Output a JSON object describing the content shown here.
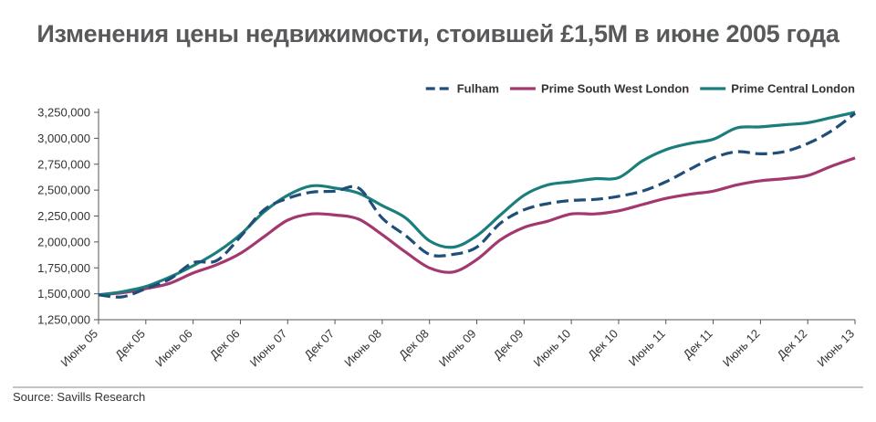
{
  "chart_data": {
    "type": "line",
    "title": "Изменения цены недвижимости, стоившей £1,5М в июне 2005 года",
    "xlabel": "",
    "ylabel": "",
    "ylim": [
      1250000,
      3250000
    ],
    "yticks": [
      1250000,
      1500000,
      1750000,
      2000000,
      2250000,
      2500000,
      2750000,
      3000000,
      3250000
    ],
    "ytick_labels": [
      "1,250,000",
      "1,500,000",
      "1,750,000",
      "2,000,000",
      "2,250,000",
      "2,500,000",
      "2,750,000",
      "3,000,000",
      "3,250,000"
    ],
    "x_tick_labels": [
      "Июнь 05",
      "Дек 05",
      "Июнь 06",
      "Дек 06",
      "Июнь 07",
      "Дек 07",
      "Июнь 08",
      "Дек 08",
      "Июнь 09",
      "Дек 09",
      "Июнь 10",
      "Дек 10",
      "Июнь 11",
      "Дек 11",
      "Июнь 12",
      "Дек 12",
      "Июнь 13"
    ],
    "x": [
      0,
      0.5,
      1,
      1.5,
      2,
      2.5,
      3,
      3.5,
      4,
      4.5,
      5,
      5.5,
      6,
      6.5,
      7,
      7.5,
      8,
      8.5,
      9,
      9.5,
      10,
      10.5,
      11,
      11.5,
      12,
      12.5,
      13,
      13.5,
      14,
      14.5,
      15,
      15.5,
      16
    ],
    "grid": false,
    "legend_position": "top-right",
    "series": [
      {
        "name": "Fulham",
        "color": "#1f4e79",
        "dash": true,
        "values": [
          1490000,
          1470000,
          1550000,
          1640000,
          1800000,
          1820000,
          2050000,
          2310000,
          2420000,
          2480000,
          2490000,
          2520000,
          2230000,
          2060000,
          1880000,
          1880000,
          1950000,
          2180000,
          2310000,
          2370000,
          2400000,
          2410000,
          2440000,
          2490000,
          2580000,
          2700000,
          2810000,
          2870000,
          2850000,
          2870000,
          2950000,
          3070000,
          3240000
        ]
      },
      {
        "name": "Prime South West London",
        "color": "#a3386f",
        "dash": false,
        "values": [
          1490000,
          1510000,
          1550000,
          1600000,
          1700000,
          1780000,
          1890000,
          2050000,
          2210000,
          2270000,
          2260000,
          2220000,
          2070000,
          1900000,
          1750000,
          1710000,
          1830000,
          2020000,
          2140000,
          2200000,
          2270000,
          2270000,
          2300000,
          2360000,
          2420000,
          2460000,
          2490000,
          2550000,
          2590000,
          2610000,
          2640000,
          2730000,
          2810000
        ]
      },
      {
        "name": "Prime Central London",
        "color": "#1a7e7c",
        "dash": false,
        "values": [
          1490000,
          1520000,
          1570000,
          1660000,
          1770000,
          1900000,
          2070000,
          2290000,
          2450000,
          2540000,
          2520000,
          2470000,
          2350000,
          2230000,
          2010000,
          1950000,
          2060000,
          2260000,
          2450000,
          2550000,
          2580000,
          2610000,
          2620000,
          2780000,
          2890000,
          2950000,
          2990000,
          3100000,
          3110000,
          3130000,
          3150000,
          3200000,
          3250000
        ]
      }
    ],
    "source": "Source: Savills Research"
  }
}
